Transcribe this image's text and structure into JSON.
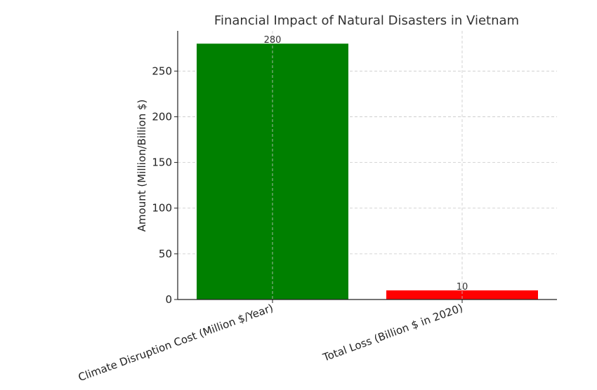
{
  "chart_data": {
    "type": "bar",
    "title": "Financial Impact of Natural Disasters in Vietnam",
    "xlabel": "",
    "ylabel": "Amount (Million/Billion $)",
    "categories": [
      "Climate Disruption Cost (Million $/Year)",
      "Total Loss (Billion $ in 2020)"
    ],
    "values": [
      280,
      10
    ],
    "data_labels": [
      "280",
      "10"
    ],
    "colors": [
      "#008000",
      "#ff0000"
    ],
    "ylim": [
      0,
      294
    ],
    "yticks": [
      0,
      50,
      100,
      150,
      200,
      250
    ],
    "ytick_labels": [
      "0",
      "50",
      "100",
      "150",
      "200",
      "250"
    ],
    "grid": true,
    "x_tick_rotation": 20
  }
}
